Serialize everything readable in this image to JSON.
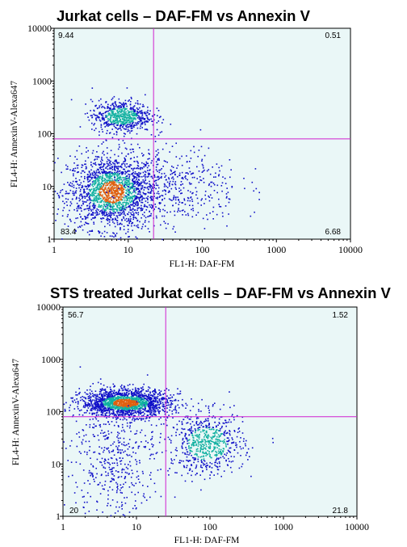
{
  "chart_data": [
    {
      "type": "scatter",
      "subtype": "flow-cytometry-density-plot",
      "title": "Jurkat cells – DAF-FM vs Annexin V",
      "xlabel": "FL1-H: DAF-FM",
      "ylabel": "FL4-H: AnnexinV-Alexa647",
      "x_scale": "log",
      "y_scale": "log",
      "xlim": [
        1,
        10000
      ],
      "ylim": [
        1,
        10000
      ],
      "x_ticks": [
        "1",
        "10",
        "100",
        "1000",
        "10000"
      ],
      "y_ticks": [
        "1",
        "10",
        "100",
        "1000",
        "10000"
      ],
      "gate": {
        "x": 22,
        "y": 80
      },
      "quadrant_percent": {
        "upper_left": "9.44",
        "upper_right": "0.51",
        "lower_left": "83.4",
        "lower_right": "6.68"
      },
      "populations": [
        {
          "x_center": 6,
          "y_center": 8,
          "x_spread_decades": 0.3,
          "y_spread_decades": 0.35,
          "density": "high"
        },
        {
          "x_center": 8,
          "y_center": 220,
          "x_spread_decades": 0.2,
          "y_spread_decades": 0.15,
          "density": "medium"
        },
        {
          "x_center": 40,
          "y_center": 10,
          "x_spread_decades": 0.45,
          "y_spread_decades": 0.4,
          "density": "low"
        }
      ],
      "grid": false
    },
    {
      "type": "scatter",
      "subtype": "flow-cytometry-density-plot",
      "title": "STS treated Jurkat cells – DAF-FM vs Annexin V",
      "xlabel": "FL1-H: DAF-FM",
      "ylabel": "FL4-H: AnnexinV-Alexa647",
      "x_scale": "log",
      "y_scale": "log",
      "xlim": [
        1,
        10000
      ],
      "ylim": [
        1,
        10000
      ],
      "x_ticks": [
        "1",
        "10",
        "100",
        "1000",
        "10000"
      ],
      "y_ticks": [
        "1",
        "10",
        "100",
        "1000",
        "10000"
      ],
      "gate": {
        "x": 25,
        "y": 80
      },
      "quadrant_percent": {
        "upper_left": "56.7",
        "upper_right": "1.52",
        "lower_left": "20",
        "lower_right": "21.8"
      },
      "populations": [
        {
          "x_center": 7,
          "y_center": 150,
          "x_spread_decades": 0.3,
          "y_spread_decades": 0.13,
          "density": "high"
        },
        {
          "x_center": 90,
          "y_center": 25,
          "x_spread_decades": 0.25,
          "y_spread_decades": 0.3,
          "density": "medium"
        },
        {
          "x_center": 5,
          "y_center": 12,
          "x_spread_decades": 0.3,
          "y_spread_decades": 0.6,
          "density": "low"
        }
      ],
      "grid": false
    }
  ],
  "colors": {
    "plot_background": "#eaf7f7",
    "gate_line": "#d020d0",
    "density_low": "#1010c8",
    "density_mid": "#10b0a0",
    "density_high": "#e06010"
  }
}
